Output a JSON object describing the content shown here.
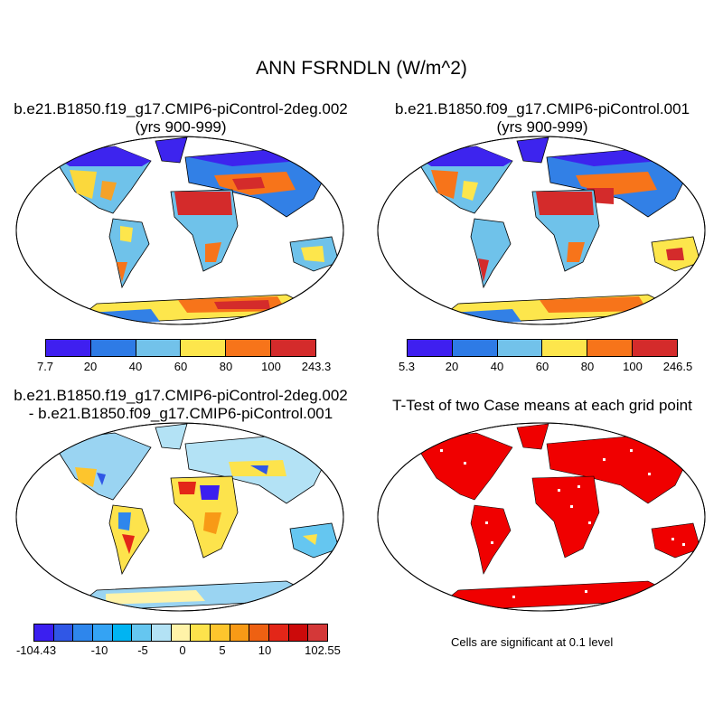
{
  "figure": {
    "title": "ANN FSRNDLN (W/m^2)",
    "note": "Cells are significant at 0.1 level"
  },
  "panels": [
    {
      "title_line1": "b.e21.B1850.f19_g17.CMIP6-piControl-2deg.002",
      "title_line2": "(yrs 900-999)",
      "colorbar": {
        "labels": [
          "7.7",
          "20",
          "40",
          "60",
          "80",
          "100",
          "243.3"
        ],
        "colors": [
          "#3f1ff0",
          "#2e7be6",
          "#72c2ea",
          "#fde64c",
          "#f7741a",
          "#d42b2b"
        ]
      }
    },
    {
      "title_line1": "b.e21.B1850.f09_g17.CMIP6-piControl.001",
      "title_line2": "(yrs 900-999)",
      "colorbar": {
        "labels": [
          "5.3",
          "20",
          "40",
          "60",
          "80",
          "100",
          "246.5"
        ],
        "colors": [
          "#3f1ff0",
          "#2e7be6",
          "#72c2ea",
          "#fde64c",
          "#f7741a",
          "#d42b2b"
        ]
      }
    },
    {
      "title_line1": "b.e21.B1850.f19_g17.CMIP6-piControl-2deg.002",
      "title_line2": "- b.e21.B1850.f09_g17.CMIP6-piControl.001",
      "colorbar": {
        "labels": [
          "-104.43",
          "-10",
          "-5",
          "0",
          "5",
          "10",
          "102.55"
        ],
        "colors": [
          "#3b1ff0",
          "#3057e6",
          "#2e86ec",
          "#34a3f4",
          "#00b4f2",
          "#65c6f0",
          "#b3e2f5",
          "#fff3a8",
          "#fde34c",
          "#fdc52d",
          "#f89a16",
          "#ee6112",
          "#e32618",
          "#cc0a0a",
          "#d43838"
        ]
      }
    },
    {
      "title_line1": "T-Test of two Case means at each grid point"
    }
  ]
}
